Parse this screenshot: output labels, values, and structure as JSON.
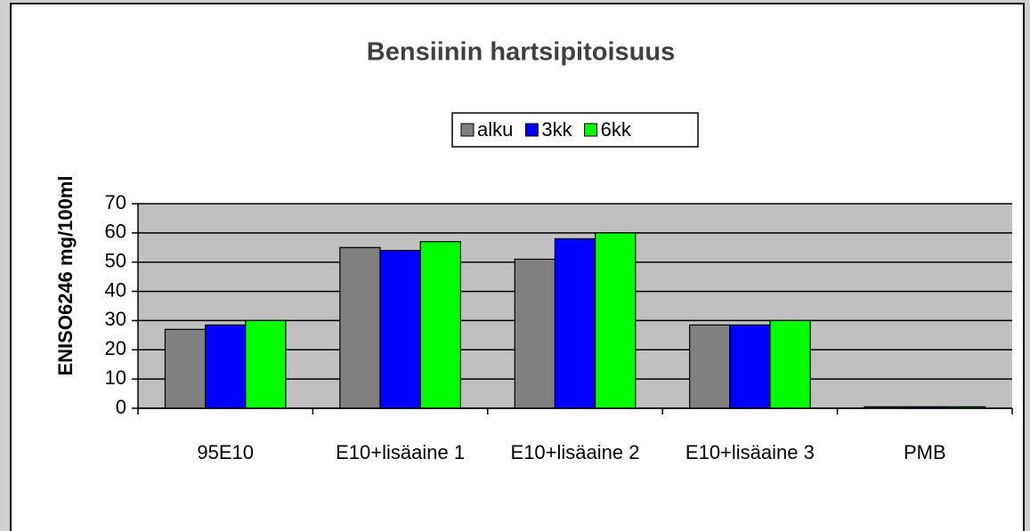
{
  "chart_data": {
    "type": "bar",
    "title": "Bensiinin hartsipitoisuus",
    "y_label": "ENISO6246 mg/100ml",
    "categories": [
      "95E10",
      "E10+lisäaine 1",
      "E10+lisäaine 2",
      "E10+lisäaine 3",
      "PMB"
    ],
    "series": [
      {
        "name": "alku",
        "color": "#808080",
        "values": [
          27,
          55,
          51,
          28.5,
          0.5
        ]
      },
      {
        "name": "3kk",
        "color": "#0000ff",
        "values": [
          28.5,
          54,
          58,
          28.5,
          0.5
        ]
      },
      {
        "name": "6kk",
        "color": "#00ff00",
        "values": [
          30,
          57,
          60,
          30,
          0.5
        ]
      }
    ],
    "ylim": [
      0,
      70
    ],
    "yticks": [
      0,
      10,
      20,
      30,
      40,
      50,
      60,
      70
    ],
    "grid": true,
    "legend": "top"
  }
}
